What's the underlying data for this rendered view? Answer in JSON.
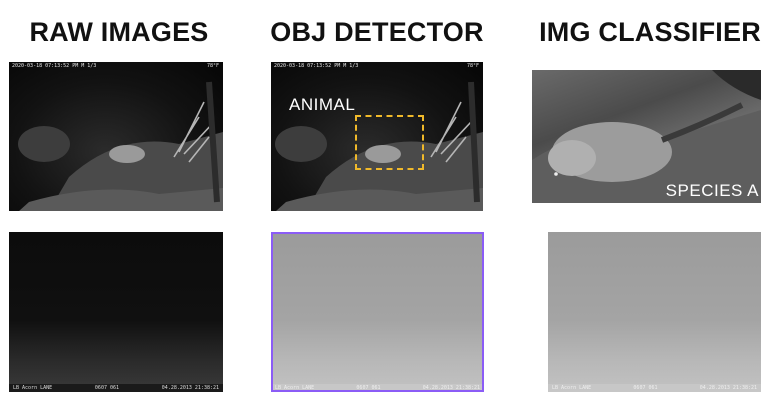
{
  "columns": [
    {
      "title": "RAW IMAGES"
    },
    {
      "title": "OBJ DETECTOR"
    },
    {
      "title": "IMG CLASSIFIER"
    }
  ],
  "row1": {
    "stamp_left": "2020-03-18  07:13:52 PM  M 1/3",
    "stamp_right": "78°F",
    "detector_label": "ANIMAL",
    "classifier_label": "SPECIES A",
    "detector_box_color": "#f0b92a"
  },
  "row2": {
    "stamp_camera": "LB Acorn LANE",
    "stamp_mid": "0607  061",
    "stamp_date": "04.28.2013 21:38:21",
    "highlight_color": "#8b5cf6"
  }
}
